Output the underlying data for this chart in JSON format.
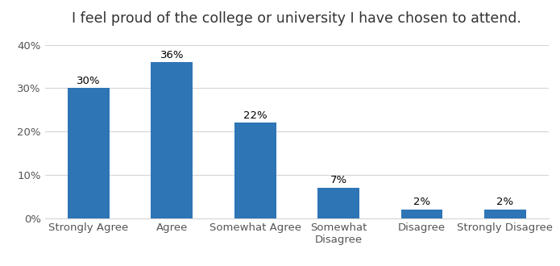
{
  "title": "I feel proud of the college or university I have chosen to attend.",
  "categories": [
    "Strongly Agree",
    "Agree",
    "Somewhat Agree",
    "Somewhat\nDisagree",
    "Disagree",
    "Strongly Disagree"
  ],
  "values": [
    30,
    36,
    22,
    7,
    2,
    2
  ],
  "labels": [
    "30%",
    "36%",
    "22%",
    "7%",
    "2%",
    "2%"
  ],
  "bar_color": "#2E75B6",
  "ylim": [
    0,
    43
  ],
  "yticks": [
    0,
    10,
    20,
    30,
    40
  ],
  "ytick_labels": [
    "0%",
    "10%",
    "20%",
    "30%",
    "40%"
  ],
  "background_color": "#ffffff",
  "grid_color": "#d5d5d5",
  "title_fontsize": 12.5,
  "label_fontsize": 9.5,
  "tick_fontsize": 9.5
}
